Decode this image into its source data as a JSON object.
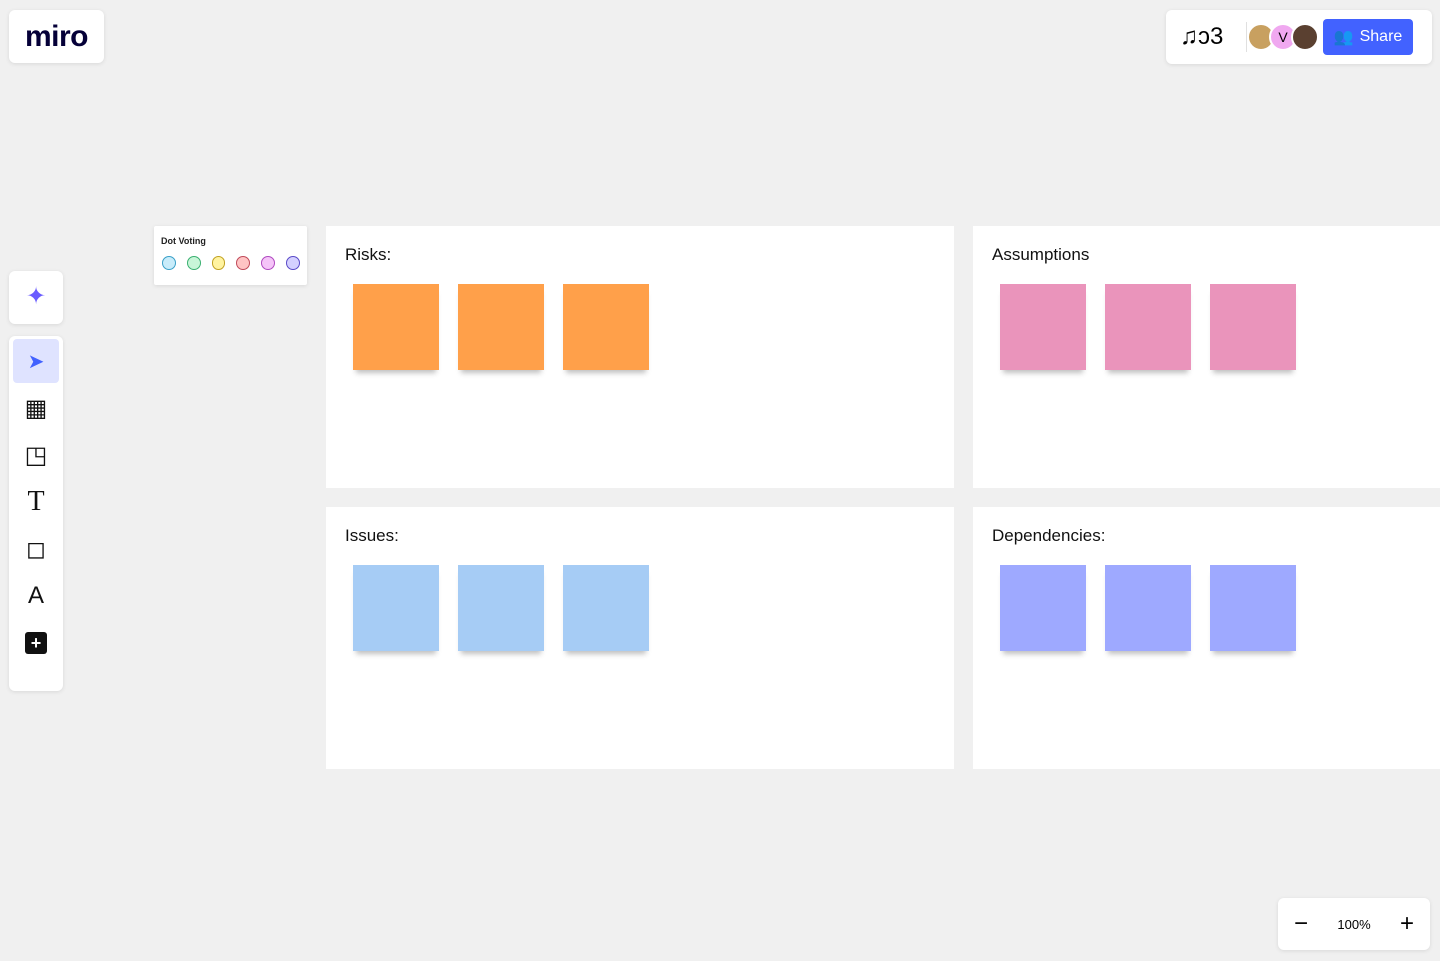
{
  "app": {
    "logo": "miro",
    "board_icon": "♫ↄ3",
    "share_label": "Share",
    "avatars": [
      {
        "initial": "",
        "color": "#c8a060"
      },
      {
        "initial": "V",
        "color": "#f0a8f0"
      },
      {
        "initial": "",
        "color": "#5a4030"
      }
    ]
  },
  "dot_voting": {
    "title": "Dot Voting",
    "dots": [
      {
        "fill": "#c8ecfa",
        "border": "#3aa0c8"
      },
      {
        "fill": "#c8f5d8",
        "border": "#3ab070"
      },
      {
        "fill": "#fff3a0",
        "border": "#c0a020"
      },
      {
        "fill": "#ffc4c4",
        "border": "#c04a5a"
      },
      {
        "fill": "#f5c4f8",
        "border": "#b04ac0"
      },
      {
        "fill": "#d4d0ff",
        "border": "#5a4ac8"
      }
    ]
  },
  "toolbar": {
    "items": [
      {
        "name": "ai-sparkle",
        "glyph": "✦"
      },
      {
        "name": "select",
        "glyph": "➤"
      },
      {
        "name": "templates",
        "glyph": "▦"
      },
      {
        "name": "sticky-note",
        "glyph": "◳"
      },
      {
        "name": "text",
        "glyph": "T"
      },
      {
        "name": "shapes",
        "glyph": "◻"
      },
      {
        "name": "pen",
        "glyph": "A"
      },
      {
        "name": "more",
        "glyph": "+"
      }
    ]
  },
  "frames": [
    {
      "title": "Risks:",
      "color": "#ffa04a"
    },
    {
      "title": "Assumptions",
      "color": "#ea94bb"
    },
    {
      "title": "Issues:",
      "color": "#a6ccf5"
    },
    {
      "title": "Dependencies:",
      "color": "#9ea9ff"
    }
  ],
  "zoom": {
    "level": "100%",
    "minus": "−",
    "plus": "+"
  }
}
